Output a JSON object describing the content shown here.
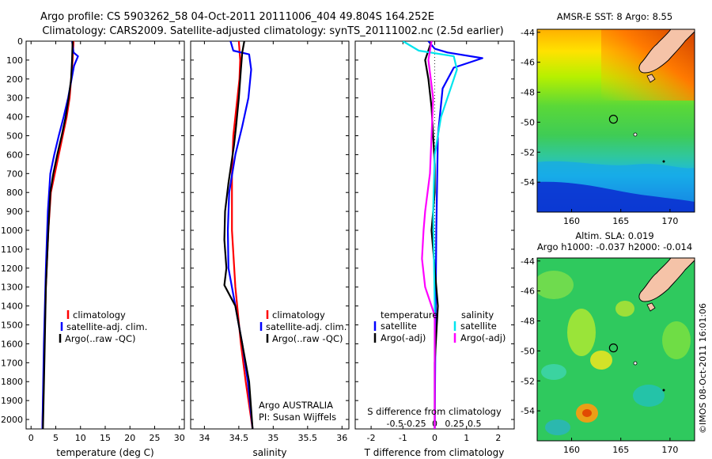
{
  "header": {
    "line1": "Argo profile: CS 5903262_58 04-Oct-2011 20111006_404 49.804S 164.252E",
    "line2": "Climatology: CARS2009. Satellite-adjusted climatology: synTS_20111002.nc (2.5d earlier)"
  },
  "watermark": "©IMOS 08-Oct-2011 16:01:06",
  "colors": {
    "climatology": "#ff0000",
    "satellite": "#0000ff",
    "argo": "#000000",
    "sat_salinity": "#00e5ee",
    "argo_salinity": "#ff00ff"
  },
  "chart_data": [
    {
      "type": "line",
      "id": "temperature",
      "xlabel": "temperature (deg C)",
      "ylabel": "",
      "xlim": [
        -1,
        31
      ],
      "ylim": [
        2050,
        0
      ],
      "xticks": [
        0,
        5,
        10,
        15,
        20,
        25,
        30
      ],
      "yticks": [
        0,
        100,
        200,
        300,
        400,
        500,
        600,
        700,
        800,
        900,
        1000,
        1100,
        1200,
        1300,
        1400,
        1500,
        1600,
        1700,
        1800,
        1900,
        2000
      ],
      "legend": [
        "climatology",
        "satellite-adj. clim.",
        "Argo(..raw -QC)"
      ],
      "series": [
        {
          "name": "climatology",
          "color": "#ff0000",
          "x": [
            8.6,
            8.4,
            8.1,
            7.8,
            7.2,
            6.4,
            5.6,
            4.8,
            4.0,
            3.5,
            3.0,
            2.6,
            2.3
          ],
          "y": [
            0,
            100,
            200,
            300,
            400,
            500,
            600,
            700,
            800,
            1000,
            1300,
            1700,
            2050
          ]
        },
        {
          "name": "satellite-adj. clim.",
          "color": "#0000ff",
          "x": [
            8.3,
            8.6,
            9.5,
            8.7,
            8.2,
            7.5,
            6.6,
            5.6,
            4.7,
            3.9,
            3.4,
            3.0,
            2.6,
            2.3
          ],
          "y": [
            0,
            60,
            80,
            130,
            200,
            300,
            400,
            500,
            600,
            700,
            900,
            1200,
            1600,
            2050
          ]
        },
        {
          "name": "Argo(..raw -QC)",
          "color": "#000000",
          "x": [
            8.4,
            8.3,
            8.1,
            7.6,
            7.0,
            6.2,
            5.3,
            4.5,
            3.9,
            3.5,
            3.0,
            2.7,
            2.4
          ],
          "y": [
            0,
            100,
            200,
            300,
            400,
            500,
            600,
            700,
            800,
            1000,
            1300,
            1700,
            2050
          ]
        }
      ]
    },
    {
      "type": "line",
      "id": "salinity",
      "xlabel": "salinity",
      "xlim": [
        33.8,
        36.1
      ],
      "ylim": [
        2050,
        0
      ],
      "xticks": [
        34,
        34.5,
        35,
        35.5,
        36
      ],
      "legend": [
        "climatology",
        "satellite-adj. clim.",
        "Argo(..raw -QC)"
      ],
      "annotation": [
        "Argo AUSTRALIA",
        "PI: Susan Wijffels"
      ],
      "series": [
        {
          "name": "climatology",
          "color": "#ff0000",
          "x": [
            34.5,
            34.52,
            34.51,
            34.48,
            34.45,
            34.42,
            34.4,
            34.4,
            34.45,
            34.53,
            34.6,
            34.7
          ],
          "y": [
            0,
            100,
            200,
            300,
            400,
            500,
            700,
            1000,
            1300,
            1600,
            1800,
            2050
          ]
        },
        {
          "name": "satellite-adj. clim.",
          "color": "#0000ff",
          "x": [
            34.38,
            34.42,
            34.65,
            34.68,
            34.64,
            34.55,
            34.45,
            34.36,
            34.34,
            34.35,
            34.45,
            34.55,
            34.63,
            34.7
          ],
          "y": [
            0,
            50,
            70,
            150,
            300,
            450,
            600,
            800,
            1000,
            1200,
            1400,
            1600,
            1800,
            2050
          ]
        },
        {
          "name": "Argo(..raw -QC)",
          "color": "#000000",
          "x": [
            34.58,
            34.55,
            34.53,
            34.5,
            34.46,
            34.43,
            34.35,
            34.3,
            34.29,
            34.32,
            34.29,
            34.45,
            34.55,
            34.65,
            34.7
          ],
          "y": [
            0,
            60,
            150,
            300,
            450,
            550,
            750,
            900,
            1050,
            1200,
            1290,
            1400,
            1600,
            1800,
            2050
          ]
        }
      ]
    },
    {
      "type": "line",
      "id": "difference",
      "xlabel": "T difference from climatology",
      "xlabel_top": "S difference from climatology",
      "xlim": [
        -2.5,
        2.5
      ],
      "ylim": [
        2050,
        0
      ],
      "xticks": [
        -2,
        -1,
        0,
        1,
        2
      ],
      "s_ticks": [
        -0.5,
        -0.25,
        0,
        0.25,
        0.5
      ],
      "legend": {
        "left_title": "temperature",
        "right_title": "salinity",
        "items": [
          "satellite",
          "Argo(-adj)",
          "satellite",
          "Argo(-adj)"
        ]
      },
      "series": [
        {
          "name": "satellite",
          "group": "temperature",
          "color": "#0000ff",
          "x": [
            -0.2,
            0.0,
            0.4,
            1.5,
            0.6,
            0.25,
            0.1,
            0.05,
            0.02,
            0.0
          ],
          "y": [
            0,
            40,
            60,
            90,
            140,
            250,
            500,
            1000,
            1600,
            2050
          ]
        },
        {
          "name": "Argo(-adj)",
          "group": "temperature",
          "color": "#000000",
          "x": [
            -0.1,
            -0.3,
            -0.2,
            -0.1,
            -0.05,
            0.0,
            0.0,
            -0.1,
            0.0,
            0.05,
            0.1,
            0.0,
            0.0
          ],
          "y": [
            0,
            100,
            200,
            350,
            500,
            650,
            800,
            1000,
            1200,
            1300,
            1400,
            1700,
            2050
          ]
        },
        {
          "name": "satellite",
          "group": "salinity",
          "color": "#00e5ee",
          "x": [
            -1.0,
            -0.5,
            0.6,
            0.7,
            0.5,
            0.2,
            0.0,
            -0.05,
            0.0,
            0.0
          ],
          "y": [
            0,
            50,
            80,
            150,
            250,
            400,
            600,
            900,
            1400,
            2050
          ]
        },
        {
          "name": "Argo(-adj)",
          "group": "salinity",
          "color": "#ff00ff",
          "x": [
            -0.1,
            -0.2,
            -0.05,
            -0.1,
            -0.15,
            -0.3,
            -0.35,
            -0.4,
            -0.3,
            0.0,
            0.0
          ],
          "y": [
            0,
            100,
            300,
            500,
            700,
            900,
            1000,
            1150,
            1300,
            1450,
            2050
          ]
        }
      ]
    },
    {
      "type": "heatmap",
      "id": "sst-map",
      "title": "AMSR-E SST: 8 Argo: 8.55",
      "xlim": [
        156.5,
        172.5
      ],
      "ylim": [
        -56,
        -43.8
      ],
      "xticks": [
        160,
        165,
        170
      ],
      "yticks": [
        -44,
        -46,
        -48,
        -50,
        -52,
        -54
      ],
      "argo_position": [
        164.25,
        -49.8
      ]
    },
    {
      "type": "heatmap",
      "id": "sla-map",
      "title": [
        "Altim. SLA: 0.019",
        "Argo h1000: -0.037 h2000: -0.014"
      ],
      "xlim": [
        156.5,
        172.5
      ],
      "ylim": [
        -56,
        -43.8
      ],
      "xticks": [
        160,
        165,
        170
      ],
      "yticks": [
        -44,
        -46,
        -48,
        -50,
        -52,
        -54
      ],
      "argo_position": [
        164.25,
        -49.8
      ]
    }
  ]
}
